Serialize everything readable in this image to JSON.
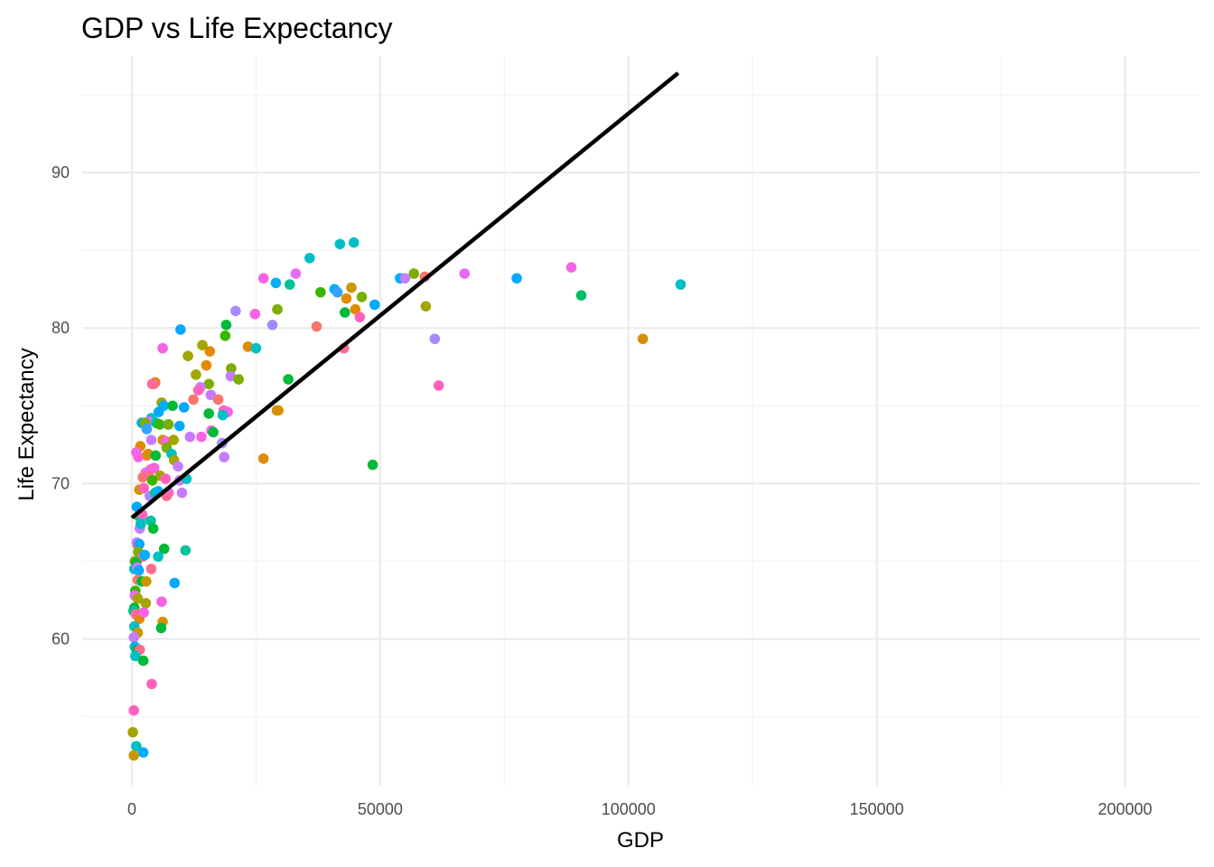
{
  "chart_data": {
    "type": "scatter",
    "title": "GDP vs Life Expectancy",
    "xlabel": "GDP",
    "ylabel": "Life Expectancy",
    "xlim": [
      -10000,
      215000
    ],
    "ylim": [
      50.5,
      97.5
    ],
    "x_ticks": [
      0,
      50000,
      100000,
      150000,
      200000
    ],
    "y_ticks": [
      60,
      70,
      80,
      90
    ],
    "x_tick_labels": [
      "0",
      "50000",
      "100000",
      "150000",
      "200000"
    ],
    "y_tick_labels": [
      "60",
      "70",
      "80",
      "90"
    ],
    "grid": true,
    "legend": "none",
    "trend_line": {
      "x": [
        0,
        110000
      ],
      "y": [
        67.8,
        96.4
      ],
      "color": "#000000"
    },
    "points": [
      {
        "x": 41900,
        "y": 85.4,
        "color": "#00BFC4"
      },
      {
        "x": 44700,
        "y": 85.5,
        "color": "#00BFC4"
      },
      {
        "x": 35800,
        "y": 84.5,
        "color": "#00BFC4"
      },
      {
        "x": 56800,
        "y": 83.5,
        "color": "#7CAE00"
      },
      {
        "x": 54000,
        "y": 83.2,
        "color": "#00B0F6"
      },
      {
        "x": 59000,
        "y": 83.3,
        "color": "#F8766D"
      },
      {
        "x": 55000,
        "y": 83.2,
        "color": "#C77CFF"
      },
      {
        "x": 67000,
        "y": 83.5,
        "color": "#E76BF3"
      },
      {
        "x": 77500,
        "y": 83.2,
        "color": "#00A9FF"
      },
      {
        "x": 88500,
        "y": 83.9,
        "color": "#F564E3"
      },
      {
        "x": 90500,
        "y": 82.1,
        "color": "#00BE67"
      },
      {
        "x": 110500,
        "y": 82.8,
        "color": "#00BFC4"
      },
      {
        "x": 102900,
        "y": 79.3,
        "color": "#D89000"
      },
      {
        "x": 61000,
        "y": 79.3,
        "color": "#A58AFF"
      },
      {
        "x": 61800,
        "y": 76.3,
        "color": "#FF62BC"
      },
      {
        "x": 48500,
        "y": 71.2,
        "color": "#00BA38"
      },
      {
        "x": 59200,
        "y": 81.4,
        "color": "#A3A500"
      },
      {
        "x": 48900,
        "y": 81.5,
        "color": "#00A9FF"
      },
      {
        "x": 46300,
        "y": 82.0,
        "color": "#7CAE00"
      },
      {
        "x": 44200,
        "y": 82.6,
        "color": "#C99800"
      },
      {
        "x": 43200,
        "y": 81.9,
        "color": "#E38900"
      },
      {
        "x": 45000,
        "y": 81.2,
        "color": "#E38900"
      },
      {
        "x": 42900,
        "y": 81.0,
        "color": "#00BA38"
      },
      {
        "x": 45900,
        "y": 80.7,
        "color": "#FF62BC"
      },
      {
        "x": 40800,
        "y": 82.5,
        "color": "#00B0F6"
      },
      {
        "x": 41400,
        "y": 82.3,
        "color": "#35A2FF"
      },
      {
        "x": 38000,
        "y": 82.3,
        "color": "#39B600"
      },
      {
        "x": 33000,
        "y": 83.5,
        "color": "#E76BF3"
      },
      {
        "x": 31800,
        "y": 82.8,
        "color": "#00C19A"
      },
      {
        "x": 29000,
        "y": 82.9,
        "color": "#00B0F6"
      },
      {
        "x": 26500,
        "y": 83.2,
        "color": "#F564E3"
      },
      {
        "x": 29300,
        "y": 81.2,
        "color": "#7CAE00"
      },
      {
        "x": 20900,
        "y": 81.1,
        "color": "#A58AFF"
      },
      {
        "x": 24800,
        "y": 80.9,
        "color": "#F564E3"
      },
      {
        "x": 28300,
        "y": 80.2,
        "color": "#A58AFF"
      },
      {
        "x": 37200,
        "y": 80.1,
        "color": "#F8766D"
      },
      {
        "x": 42700,
        "y": 78.7,
        "color": "#FF6C91"
      },
      {
        "x": 31500,
        "y": 76.7,
        "color": "#00BA38"
      },
      {
        "x": 29200,
        "y": 74.7,
        "color": "#C99800"
      },
      {
        "x": 29500,
        "y": 74.7,
        "color": "#D89000"
      },
      {
        "x": 26500,
        "y": 71.6,
        "color": "#E38900"
      },
      {
        "x": 19000,
        "y": 80.2,
        "color": "#00BA38"
      },
      {
        "x": 18800,
        "y": 79.5,
        "color": "#39B600"
      },
      {
        "x": 9800,
        "y": 79.9,
        "color": "#00A9FF"
      },
      {
        "x": 23400,
        "y": 78.8,
        "color": "#E38900"
      },
      {
        "x": 25000,
        "y": 78.7,
        "color": "#00BFC4"
      },
      {
        "x": 14200,
        "y": 78.9,
        "color": "#A3A500"
      },
      {
        "x": 15700,
        "y": 78.5,
        "color": "#E38900"
      },
      {
        "x": 11300,
        "y": 78.2,
        "color": "#A3A500"
      },
      {
        "x": 6200,
        "y": 78.7,
        "color": "#F564E3"
      },
      {
        "x": 15000,
        "y": 77.6,
        "color": "#E38900"
      },
      {
        "x": 20000,
        "y": 77.4,
        "color": "#7CAE00"
      },
      {
        "x": 19900,
        "y": 76.9,
        "color": "#C77CFF"
      },
      {
        "x": 21500,
        "y": 76.7,
        "color": "#7CAE00"
      },
      {
        "x": 12900,
        "y": 77.0,
        "color": "#A3A500"
      },
      {
        "x": 15500,
        "y": 76.4,
        "color": "#7CAE00"
      },
      {
        "x": 13800,
        "y": 76.2,
        "color": "#C77CFF"
      },
      {
        "x": 13400,
        "y": 76.0,
        "color": "#FF62BC"
      },
      {
        "x": 4100,
        "y": 76.4,
        "color": "#FF62BC"
      },
      {
        "x": 4700,
        "y": 76.5,
        "color": "#E38900"
      },
      {
        "x": 4400,
        "y": 76.4,
        "color": "#FF6C91"
      },
      {
        "x": 15900,
        "y": 75.7,
        "color": "#C77CFF"
      },
      {
        "x": 17400,
        "y": 75.4,
        "color": "#F8766D"
      },
      {
        "x": 12400,
        "y": 75.4,
        "color": "#F8766D"
      },
      {
        "x": 6000,
        "y": 75.2,
        "color": "#A3A500"
      },
      {
        "x": 6400,
        "y": 75.0,
        "color": "#00B0F6"
      },
      {
        "x": 8200,
        "y": 75.0,
        "color": "#00BA38"
      },
      {
        "x": 10500,
        "y": 74.9,
        "color": "#00A9FF"
      },
      {
        "x": 18500,
        "y": 74.7,
        "color": "#FF62BC"
      },
      {
        "x": 19300,
        "y": 74.6,
        "color": "#F564E3"
      },
      {
        "x": 18300,
        "y": 74.4,
        "color": "#00BFC4"
      },
      {
        "x": 15500,
        "y": 74.5,
        "color": "#00BA38"
      },
      {
        "x": 5400,
        "y": 74.6,
        "color": "#00A9FF"
      },
      {
        "x": 3900,
        "y": 74.2,
        "color": "#00BFC4"
      },
      {
        "x": 3400,
        "y": 74.0,
        "color": "#C77CFF"
      },
      {
        "x": 2000,
        "y": 73.9,
        "color": "#00A9FF"
      },
      {
        "x": 2600,
        "y": 73.9,
        "color": "#7CAE00"
      },
      {
        "x": 4900,
        "y": 73.9,
        "color": "#00C19A"
      },
      {
        "x": 5600,
        "y": 73.8,
        "color": "#39B600"
      },
      {
        "x": 7300,
        "y": 73.8,
        "color": "#00B0F6"
      },
      {
        "x": 7400,
        "y": 73.8,
        "color": "#7CAE00"
      },
      {
        "x": 9600,
        "y": 73.7,
        "color": "#00A9FF"
      },
      {
        "x": 3000,
        "y": 73.5,
        "color": "#35A2FF"
      },
      {
        "x": 16000,
        "y": 73.4,
        "color": "#F564E3"
      },
      {
        "x": 16400,
        "y": 73.3,
        "color": "#00BA38"
      },
      {
        "x": 11700,
        "y": 73.0,
        "color": "#C77CFF"
      },
      {
        "x": 14000,
        "y": 73.0,
        "color": "#F564E3"
      },
      {
        "x": 6200,
        "y": 72.8,
        "color": "#D89000"
      },
      {
        "x": 6900,
        "y": 72.7,
        "color": "#F564E3"
      },
      {
        "x": 8400,
        "y": 72.8,
        "color": "#A3A500"
      },
      {
        "x": 3900,
        "y": 72.8,
        "color": "#C77CFF"
      },
      {
        "x": 7000,
        "y": 72.3,
        "color": "#7CAE00"
      },
      {
        "x": 18200,
        "y": 72.6,
        "color": "#A58AFF"
      },
      {
        "x": 1700,
        "y": 72.4,
        "color": "#E38900"
      },
      {
        "x": 900,
        "y": 72.0,
        "color": "#F564E3"
      },
      {
        "x": 1300,
        "y": 71.7,
        "color": "#F564E3"
      },
      {
        "x": 3000,
        "y": 71.8,
        "color": "#F8766D"
      },
      {
        "x": 3300,
        "y": 71.9,
        "color": "#D89000"
      },
      {
        "x": 4800,
        "y": 71.8,
        "color": "#00BA38"
      },
      {
        "x": 8000,
        "y": 71.9,
        "color": "#00BFC4"
      },
      {
        "x": 8500,
        "y": 71.5,
        "color": "#A3A500"
      },
      {
        "x": 18600,
        "y": 71.7,
        "color": "#C77CFF"
      },
      {
        "x": 9300,
        "y": 71.1,
        "color": "#C77CFF"
      },
      {
        "x": 3800,
        "y": 70.9,
        "color": "#FF62BC"
      },
      {
        "x": 4500,
        "y": 71.0,
        "color": "#F564E3"
      },
      {
        "x": 2800,
        "y": 70.7,
        "color": "#E76BF3"
      },
      {
        "x": 2200,
        "y": 70.4,
        "color": "#F8766D"
      },
      {
        "x": 3400,
        "y": 70.5,
        "color": "#FF6C91"
      },
      {
        "x": 5700,
        "y": 70.5,
        "color": "#A3A500"
      },
      {
        "x": 6800,
        "y": 70.3,
        "color": "#FF62BC"
      },
      {
        "x": 9600,
        "y": 70.2,
        "color": "#C77CFF"
      },
      {
        "x": 11000,
        "y": 70.3,
        "color": "#00BFC4"
      },
      {
        "x": 4100,
        "y": 70.2,
        "color": "#39B600"
      },
      {
        "x": 1500,
        "y": 69.6,
        "color": "#C99800"
      },
      {
        "x": 2400,
        "y": 69.7,
        "color": "#FF62BC"
      },
      {
        "x": 3600,
        "y": 69.2,
        "color": "#A58AFF"
      },
      {
        "x": 4700,
        "y": 69.4,
        "color": "#00C19A"
      },
      {
        "x": 5300,
        "y": 69.5,
        "color": "#00B0F6"
      },
      {
        "x": 7400,
        "y": 69.4,
        "color": "#F564E3"
      },
      {
        "x": 7000,
        "y": 69.2,
        "color": "#FF6C91"
      },
      {
        "x": 10100,
        "y": 69.4,
        "color": "#C77CFF"
      },
      {
        "x": 1000,
        "y": 68.5,
        "color": "#00A9FF"
      },
      {
        "x": 1400,
        "y": 67.9,
        "color": "#39B600"
      },
      {
        "x": 1800,
        "y": 67.8,
        "color": "#00C19A"
      },
      {
        "x": 2100,
        "y": 68.0,
        "color": "#FF62BC"
      },
      {
        "x": 3800,
        "y": 67.6,
        "color": "#00C19A"
      },
      {
        "x": 1600,
        "y": 67.1,
        "color": "#C77CFF"
      },
      {
        "x": 1800,
        "y": 67.4,
        "color": "#00BFC4"
      },
      {
        "x": 4300,
        "y": 67.1,
        "color": "#00BA38"
      },
      {
        "x": 1000,
        "y": 66.2,
        "color": "#C77CFF"
      },
      {
        "x": 1200,
        "y": 66.0,
        "color": "#FF6C91"
      },
      {
        "x": 1500,
        "y": 66.1,
        "color": "#00A9FF"
      },
      {
        "x": 6500,
        "y": 65.8,
        "color": "#00BA38"
      },
      {
        "x": 10800,
        "y": 65.7,
        "color": "#00C19A"
      },
      {
        "x": 1300,
        "y": 65.6,
        "color": "#7CAE00"
      },
      {
        "x": 2200,
        "y": 65.3,
        "color": "#FF62BC"
      },
      {
        "x": 2600,
        "y": 65.4,
        "color": "#00B0F6"
      },
      {
        "x": 5300,
        "y": 65.3,
        "color": "#00BFC4"
      },
      {
        "x": 600,
        "y": 65.0,
        "color": "#7CAE00"
      },
      {
        "x": 900,
        "y": 64.9,
        "color": "#00BA38"
      },
      {
        "x": 500,
        "y": 64.5,
        "color": "#00BFC4"
      },
      {
        "x": 1100,
        "y": 64.6,
        "color": "#C77CFF"
      },
      {
        "x": 1400,
        "y": 64.4,
        "color": "#00A9FF"
      },
      {
        "x": 3900,
        "y": 64.5,
        "color": "#FF6C91"
      },
      {
        "x": 1200,
        "y": 63.8,
        "color": "#F8766D"
      },
      {
        "x": 2000,
        "y": 63.7,
        "color": "#00BA38"
      },
      {
        "x": 2900,
        "y": 63.7,
        "color": "#C99800"
      },
      {
        "x": 8600,
        "y": 63.6,
        "color": "#00A9FF"
      },
      {
        "x": 700,
        "y": 63.1,
        "color": "#39B600"
      },
      {
        "x": 600,
        "y": 62.8,
        "color": "#E76BF3"
      },
      {
        "x": 1200,
        "y": 62.6,
        "color": "#A3A500"
      },
      {
        "x": 2800,
        "y": 62.3,
        "color": "#A3A500"
      },
      {
        "x": 6000,
        "y": 62.4,
        "color": "#F564E3"
      },
      {
        "x": 500,
        "y": 62.0,
        "color": "#00BA38"
      },
      {
        "x": 300,
        "y": 61.8,
        "color": "#00C19A"
      },
      {
        "x": 800,
        "y": 61.6,
        "color": "#F8766D"
      },
      {
        "x": 1100,
        "y": 61.5,
        "color": "#FF62BC"
      },
      {
        "x": 1500,
        "y": 61.3,
        "color": "#E38900"
      },
      {
        "x": 2400,
        "y": 61.7,
        "color": "#F564E3"
      },
      {
        "x": 6200,
        "y": 61.1,
        "color": "#D89000"
      },
      {
        "x": 5900,
        "y": 60.7,
        "color": "#00BA38"
      },
      {
        "x": 500,
        "y": 60.8,
        "color": "#00BFC4"
      },
      {
        "x": 1200,
        "y": 60.4,
        "color": "#C99800"
      },
      {
        "x": 400,
        "y": 60.1,
        "color": "#C77CFF"
      },
      {
        "x": 600,
        "y": 59.5,
        "color": "#00B0F6"
      },
      {
        "x": 1000,
        "y": 59.3,
        "color": "#00BA38"
      },
      {
        "x": 1600,
        "y": 59.3,
        "color": "#FF6C91"
      },
      {
        "x": 700,
        "y": 58.9,
        "color": "#00BFC4"
      },
      {
        "x": 2300,
        "y": 58.6,
        "color": "#00BA38"
      },
      {
        "x": 4000,
        "y": 57.1,
        "color": "#FF62BC"
      },
      {
        "x": 400,
        "y": 55.4,
        "color": "#FF62BC"
      },
      {
        "x": 200,
        "y": 54.0,
        "color": "#A3A500"
      },
      {
        "x": 900,
        "y": 53.1,
        "color": "#00BFC4"
      },
      {
        "x": 2300,
        "y": 52.7,
        "color": "#00B0F6"
      },
      {
        "x": 400,
        "y": 52.5,
        "color": "#C99800"
      }
    ]
  }
}
